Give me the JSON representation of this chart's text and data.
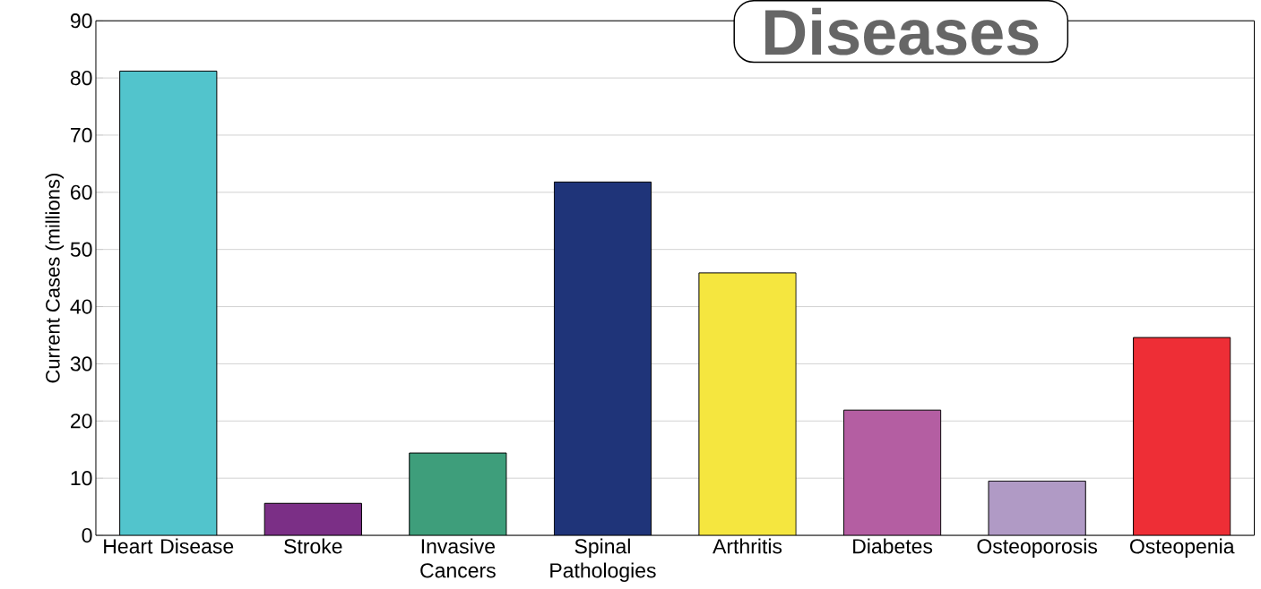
{
  "chart_data": {
    "type": "bar",
    "title": "Diseases",
    "ylabel": "Current Cases (millions)",
    "categories": [
      "Heart Disease",
      "Stroke",
      "Invasive Cancers",
      "Spinal Pathologies",
      "Arthritis",
      "Diabetes",
      "Osteoporosis",
      "Osteopenia"
    ],
    "values": [
      81.2,
      5.6,
      14.4,
      61.8,
      45.9,
      21.9,
      9.5,
      34.6
    ],
    "colors": [
      "#52c4cc",
      "#7b2f86",
      "#3e9e7b",
      "#1f3479",
      "#f5e63f",
      "#b45ea2",
      "#b09ac5",
      "#ee2e36"
    ],
    "ylim": [
      0,
      90
    ],
    "yticks": [
      0,
      10,
      20,
      30,
      40,
      50,
      60,
      70,
      80,
      90
    ],
    "grid": "y"
  }
}
